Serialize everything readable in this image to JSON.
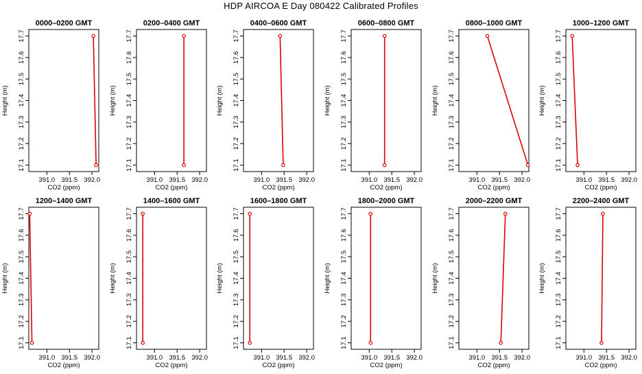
{
  "figure_title": "HDP AIRCOA E  Day 080422  Calibrated Profiles",
  "colors": {
    "series": "#dd0000",
    "axis": "#000000"
  },
  "chart_data": [
    {
      "type": "line",
      "title": "0000–0200 GMT",
      "xlabel": "CO2 (ppm)",
      "ylabel": "Height (m)",
      "xlim": [
        390.6,
        392.15
      ],
      "ylim": [
        17.07,
        17.73
      ],
      "xticks": [
        391.0,
        391.5,
        392.0
      ],
      "xtick_labels": [
        "391.0",
        "391.5",
        "392.0"
      ],
      "yticks": [
        17.1,
        17.2,
        17.3,
        17.4,
        17.5,
        17.6,
        17.7
      ],
      "ytick_labels": [
        "17.1",
        "17.2",
        "17.3",
        "17.4",
        "17.5",
        "17.6",
        "17.7"
      ],
      "series": [
        {
          "x": [
            392.03,
            392.09
          ],
          "y": [
            17.7,
            17.1
          ]
        }
      ]
    },
    {
      "type": "line",
      "title": "0200–0400 GMT",
      "xlabel": "CO2 (ppm)",
      "ylabel": "Height (m)",
      "xlim": [
        390.6,
        392.15
      ],
      "ylim": [
        17.07,
        17.73
      ],
      "xticks": [
        391.0,
        391.5,
        392.0
      ],
      "xtick_labels": [
        "391.0",
        "391.5",
        "392.0"
      ],
      "yticks": [
        17.1,
        17.2,
        17.3,
        17.4,
        17.5,
        17.6,
        17.7
      ],
      "ytick_labels": [
        "17.1",
        "17.2",
        "17.3",
        "17.4",
        "17.5",
        "17.6",
        "17.7"
      ],
      "series": [
        {
          "x": [
            391.65,
            391.65
          ],
          "y": [
            17.7,
            17.1
          ]
        }
      ]
    },
    {
      "type": "line",
      "title": "0400–0600 GMT",
      "xlabel": "CO2 (ppm)",
      "ylabel": "Height (m)",
      "xlim": [
        390.6,
        392.15
      ],
      "ylim": [
        17.07,
        17.73
      ],
      "xticks": [
        391.0,
        391.5,
        392.0
      ],
      "xtick_labels": [
        "391.0",
        "391.5",
        "392.0"
      ],
      "yticks": [
        17.1,
        17.2,
        17.3,
        17.4,
        17.5,
        17.6,
        17.7
      ],
      "ytick_labels": [
        "17.1",
        "17.2",
        "17.3",
        "17.4",
        "17.5",
        "17.6",
        "17.7"
      ],
      "series": [
        {
          "x": [
            391.41,
            391.48
          ],
          "y": [
            17.7,
            17.1
          ]
        }
      ]
    },
    {
      "type": "line",
      "title": "0600–0800 GMT",
      "xlabel": "CO2 (ppm)",
      "ylabel": "Height (m)",
      "xlim": [
        390.6,
        392.15
      ],
      "ylim": [
        17.07,
        17.73
      ],
      "xticks": [
        391.0,
        391.5,
        392.0
      ],
      "xtick_labels": [
        "391.0",
        "391.5",
        "392.0"
      ],
      "yticks": [
        17.1,
        17.2,
        17.3,
        17.4,
        17.5,
        17.6,
        17.7
      ],
      "ytick_labels": [
        "17.1",
        "17.2",
        "17.3",
        "17.4",
        "17.5",
        "17.6",
        "17.7"
      ],
      "series": [
        {
          "x": [
            391.34,
            391.34
          ],
          "y": [
            17.7,
            17.1
          ]
        }
      ]
    },
    {
      "type": "line",
      "title": "0800–1000 GMT",
      "xlabel": "CO2 (ppm)",
      "ylabel": "Height (m)",
      "xlim": [
        390.6,
        392.15
      ],
      "ylim": [
        17.07,
        17.73
      ],
      "xticks": [
        391.0,
        391.5,
        392.0
      ],
      "xtick_labels": [
        "391.0",
        "391.5",
        "392.0"
      ],
      "yticks": [
        17.1,
        17.2,
        17.3,
        17.4,
        17.5,
        17.6,
        17.7
      ],
      "ytick_labels": [
        "17.1",
        "17.2",
        "17.3",
        "17.4",
        "17.5",
        "17.6",
        "17.7"
      ],
      "series": [
        {
          "x": [
            391.23,
            392.13
          ],
          "y": [
            17.7,
            17.1
          ]
        }
      ]
    },
    {
      "type": "line",
      "title": "1000–1200 GMT",
      "xlabel": "CO2 (ppm)",
      "ylabel": "Height (m)",
      "xlim": [
        390.6,
        392.15
      ],
      "ylim": [
        17.07,
        17.73
      ],
      "xticks": [
        391.0,
        391.5,
        392.0
      ],
      "xtick_labels": [
        "391.0",
        "391.5",
        "392.0"
      ],
      "yticks": [
        17.1,
        17.2,
        17.3,
        17.4,
        17.5,
        17.6,
        17.7
      ],
      "ytick_labels": [
        "17.1",
        "17.2",
        "17.3",
        "17.4",
        "17.5",
        "17.6",
        "17.7"
      ],
      "series": [
        {
          "x": [
            390.74,
            390.86
          ],
          "y": [
            17.7,
            17.1
          ]
        }
      ]
    },
    {
      "type": "line",
      "title": "1200–1400 GMT",
      "xlabel": "CO2 (ppm)",
      "ylabel": "Height (m)",
      "xlim": [
        390.6,
        392.15
      ],
      "ylim": [
        17.07,
        17.73
      ],
      "xticks": [
        391.0,
        391.5,
        392.0
      ],
      "xtick_labels": [
        "391.0",
        "391.5",
        "392.0"
      ],
      "yticks": [
        17.1,
        17.2,
        17.3,
        17.4,
        17.5,
        17.6,
        17.7
      ],
      "ytick_labels": [
        "17.1",
        "17.2",
        "17.3",
        "17.4",
        "17.5",
        "17.6",
        "17.7"
      ],
      "series": [
        {
          "x": [
            390.62,
            390.67
          ],
          "y": [
            17.7,
            17.1
          ]
        }
      ]
    },
    {
      "type": "line",
      "title": "1400–1600 GMT",
      "xlabel": "CO2 (ppm)",
      "ylabel": "Height (m)",
      "xlim": [
        390.6,
        392.15
      ],
      "ylim": [
        17.07,
        17.73
      ],
      "xticks": [
        391.0,
        391.5,
        392.0
      ],
      "xtick_labels": [
        "391.0",
        "391.5",
        "392.0"
      ],
      "yticks": [
        17.1,
        17.2,
        17.3,
        17.4,
        17.5,
        17.6,
        17.7
      ],
      "ytick_labels": [
        "17.1",
        "17.2",
        "17.3",
        "17.4",
        "17.5",
        "17.6",
        "17.7"
      ],
      "series": [
        {
          "x": [
            390.74,
            390.74
          ],
          "y": [
            17.7,
            17.1
          ]
        }
      ]
    },
    {
      "type": "line",
      "title": "1600–1800 GMT",
      "xlabel": "CO2 (ppm)",
      "ylabel": "Height (m)",
      "xlim": [
        390.6,
        392.15
      ],
      "ylim": [
        17.07,
        17.73
      ],
      "xticks": [
        391.0,
        391.5,
        392.0
      ],
      "xtick_labels": [
        "391.0",
        "391.5",
        "392.0"
      ],
      "yticks": [
        17.1,
        17.2,
        17.3,
        17.4,
        17.5,
        17.6,
        17.7
      ],
      "ytick_labels": [
        "17.1",
        "17.2",
        "17.3",
        "17.4",
        "17.5",
        "17.6",
        "17.7"
      ],
      "series": [
        {
          "x": [
            390.74,
            390.74
          ],
          "y": [
            17.7,
            17.1
          ]
        }
      ]
    },
    {
      "type": "line",
      "title": "1800–2000 GMT",
      "xlabel": "CO2 (ppm)",
      "ylabel": "Height (m)",
      "xlim": [
        390.6,
        392.15
      ],
      "ylim": [
        17.07,
        17.73
      ],
      "xticks": [
        391.0,
        391.5,
        392.0
      ],
      "xtick_labels": [
        "391.0",
        "391.5",
        "392.0"
      ],
      "yticks": [
        17.1,
        17.2,
        17.3,
        17.4,
        17.5,
        17.6,
        17.7
      ],
      "ytick_labels": [
        "17.1",
        "17.2",
        "17.3",
        "17.4",
        "17.5",
        "17.6",
        "17.7"
      ],
      "series": [
        {
          "x": [
            391.03,
            391.03
          ],
          "y": [
            17.7,
            17.1
          ]
        }
      ]
    },
    {
      "type": "line",
      "title": "2000–2200 GMT",
      "xlabel": "CO2 (ppm)",
      "ylabel": "Height (m)",
      "xlim": [
        390.6,
        392.15
      ],
      "ylim": [
        17.07,
        17.73
      ],
      "xticks": [
        391.0,
        391.5,
        392.0
      ],
      "xtick_labels": [
        "391.0",
        "391.5",
        "392.0"
      ],
      "yticks": [
        17.1,
        17.2,
        17.3,
        17.4,
        17.5,
        17.6,
        17.7
      ],
      "ytick_labels": [
        "17.1",
        "17.2",
        "17.3",
        "17.4",
        "17.5",
        "17.6",
        "17.7"
      ],
      "series": [
        {
          "x": [
            391.63,
            391.53
          ],
          "y": [
            17.7,
            17.1
          ]
        }
      ]
    },
    {
      "type": "line",
      "title": "2200–2400 GMT",
      "xlabel": "CO2 (ppm)",
      "ylabel": "Height (m)",
      "xlim": [
        390.6,
        392.15
      ],
      "ylim": [
        17.07,
        17.73
      ],
      "xticks": [
        391.0,
        391.5,
        392.0
      ],
      "xtick_labels": [
        "391.0",
        "391.5",
        "392.0"
      ],
      "yticks": [
        17.1,
        17.2,
        17.3,
        17.4,
        17.5,
        17.6,
        17.7
      ],
      "ytick_labels": [
        "17.1",
        "17.2",
        "17.3",
        "17.4",
        "17.5",
        "17.6",
        "17.7"
      ],
      "series": [
        {
          "x": [
            391.42,
            391.39
          ],
          "y": [
            17.7,
            17.1
          ]
        }
      ]
    }
  ]
}
